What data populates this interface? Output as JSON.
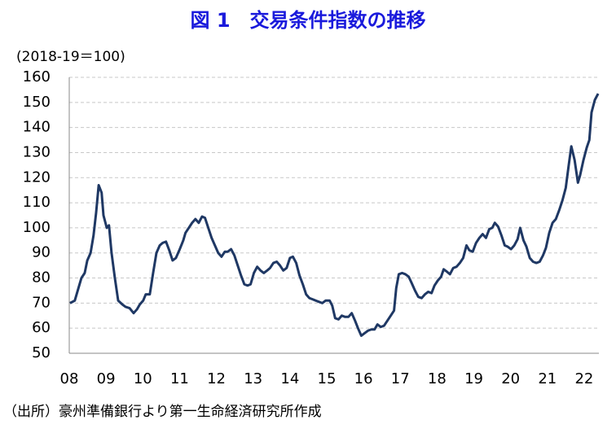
{
  "chart_data": {
    "type": "line",
    "title": "図 1　交易条件指数の推移",
    "y_label": "(2018-19＝100)",
    "source": "（出所）豪州準備銀行より第一生命経済研究所作成",
    "xlim": [
      2008,
      2022.4
    ],
    "xticks": [
      {
        "value": 2008,
        "label": "08"
      },
      {
        "value": 2009,
        "label": "09"
      },
      {
        "value": 2010,
        "label": "10"
      },
      {
        "value": 2011,
        "label": "11"
      },
      {
        "value": 2012,
        "label": "12"
      },
      {
        "value": 2013,
        "label": "13"
      },
      {
        "value": 2014,
        "label": "14"
      },
      {
        "value": 2015,
        "label": "15"
      },
      {
        "value": 2016,
        "label": "16"
      },
      {
        "value": 2017,
        "label": "17"
      },
      {
        "value": 2018,
        "label": "18"
      },
      {
        "value": 2019,
        "label": "19"
      },
      {
        "value": 2020,
        "label": "20"
      },
      {
        "value": 2021,
        "label": "21"
      },
      {
        "value": 2022,
        "label": "22"
      }
    ],
    "ylim": [
      50,
      160
    ],
    "yticks": [
      50,
      60,
      70,
      80,
      90,
      100,
      110,
      120,
      130,
      140,
      150,
      160
    ],
    "grid": true,
    "color": "#1f3864",
    "x": [
      2008.02,
      2008.15,
      2008.27,
      2008.33,
      2008.42,
      2008.49,
      2008.58,
      2008.66,
      2008.73,
      2008.8,
      2008.88,
      2008.93,
      2009.02,
      2009.08,
      2009.15,
      2009.24,
      2009.33,
      2009.44,
      2009.53,
      2009.64,
      2009.75,
      2009.84,
      2009.92,
      2010.01,
      2010.08,
      2010.19,
      2010.28,
      2010.37,
      2010.46,
      2010.54,
      2010.63,
      2010.72,
      2010.81,
      2010.9,
      2010.99,
      2011.1,
      2011.16,
      2011.25,
      2011.34,
      2011.43,
      2011.52,
      2011.61,
      2011.69,
      2011.78,
      2011.87,
      2011.96,
      2012.05,
      2012.14,
      2012.23,
      2012.31,
      2012.4,
      2012.49,
      2012.58,
      2012.67,
      2012.76,
      2012.85,
      2012.93,
      2013.02,
      2013.11,
      2013.2,
      2013.29,
      2013.38,
      2013.46,
      2013.55,
      2013.64,
      2013.73,
      2013.82,
      2013.91,
      2014.0,
      2014.08,
      2014.17,
      2014.26,
      2014.35,
      2014.44,
      2014.53,
      2014.62,
      2014.7,
      2014.79,
      2014.88,
      2014.97,
      2015.08,
      2015.15,
      2015.23,
      2015.32,
      2015.41,
      2015.5,
      2015.59,
      2015.68,
      2015.77,
      2015.85,
      2015.94,
      2016.03,
      2016.12,
      2016.21,
      2016.3,
      2016.38,
      2016.47,
      2016.56,
      2016.65,
      2016.74,
      2016.83,
      2016.89,
      2016.96,
      2017.05,
      2017.14,
      2017.23,
      2017.31,
      2017.4,
      2017.49,
      2017.58,
      2017.67,
      2017.76,
      2017.85,
      2017.93,
      2018.02,
      2018.11,
      2018.18,
      2018.27,
      2018.35,
      2018.44,
      2018.53,
      2018.62,
      2018.71,
      2018.8,
      2018.88,
      2018.97,
      2019.06,
      2019.15,
      2019.24,
      2019.33,
      2019.42,
      2019.5,
      2019.57,
      2019.66,
      2019.75,
      2019.84,
      2019.92,
      2020.01,
      2020.1,
      2020.19,
      2020.26,
      2020.35,
      2020.43,
      2020.52,
      2020.61,
      2020.7,
      2020.79,
      2020.88,
      2020.96,
      2021.05,
      2021.14,
      2021.23,
      2021.32,
      2021.41,
      2021.5,
      2021.58,
      2021.65,
      2021.74,
      2021.83,
      2021.89,
      2021.98,
      2022.07,
      2022.14,
      2022.2,
      2022.29,
      2022.38
    ],
    "values": [
      70,
      71,
      77,
      80,
      82,
      87,
      90,
      97,
      106,
      117,
      114,
      105,
      100,
      101,
      90,
      80,
      71,
      69.5,
      68.5,
      68,
      66,
      67.5,
      69.5,
      71,
      73.5,
      73.5,
      82,
      90,
      93,
      94,
      94.5,
      91,
      87,
      88,
      91,
      95,
      98,
      100,
      102,
      103.5,
      102,
      104.5,
      104,
      100,
      96,
      93,
      90,
      88.5,
      90.5,
      90.5,
      91.5,
      89,
      85,
      81,
      77.5,
      77,
      77.5,
      82,
      84.5,
      83,
      82,
      83,
      84,
      86,
      86.5,
      85,
      83,
      84,
      88,
      88.5,
      86,
      81,
      77.5,
      73.5,
      72,
      71.5,
      71,
      70.5,
      70,
      71,
      71,
      69,
      64,
      63.5,
      65,
      64.5,
      64.5,
      66,
      63,
      60,
      57,
      58,
      59,
      59.5,
      59.5,
      61.5,
      60.5,
      61,
      63,
      65,
      67,
      76,
      81.5,
      82,
      81.5,
      80.5,
      78,
      75,
      72.5,
      72,
      73.5,
      74.5,
      74,
      77,
      79,
      80.5,
      83.5,
      82.5,
      81.5,
      84,
      84.5,
      86,
      88,
      93,
      91,
      90.5,
      94,
      96,
      97.5,
      96,
      99.5,
      100,
      102,
      100.5,
      97,
      93,
      92.5,
      91.5,
      93,
      95.5,
      100,
      95,
      92.5,
      88,
      86.5,
      86,
      86.5,
      89,
      92,
      98,
      102,
      103.5,
      107,
      111,
      116,
      125,
      132.5,
      127,
      118,
      121,
      127,
      132,
      135,
      146,
      151,
      153.5
    ]
  }
}
